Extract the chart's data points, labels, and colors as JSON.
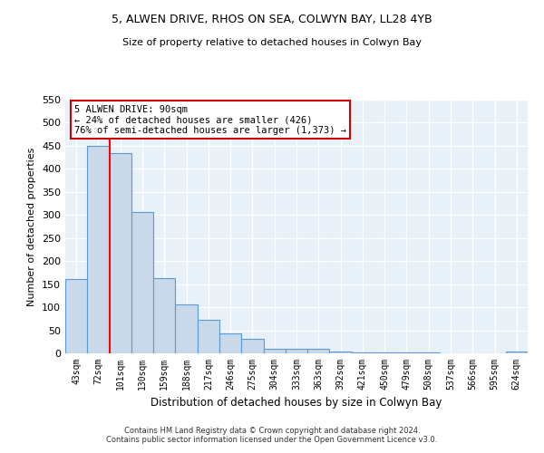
{
  "title1": "5, ALWEN DRIVE, RHOS ON SEA, COLWYN BAY, LL28 4YB",
  "title2": "Size of property relative to detached houses in Colwyn Bay",
  "xlabel": "Distribution of detached houses by size in Colwyn Bay",
  "ylabel": "Number of detached properties",
  "categories": [
    "43sqm",
    "72sqm",
    "101sqm",
    "130sqm",
    "159sqm",
    "188sqm",
    "217sqm",
    "246sqm",
    "275sqm",
    "304sqm",
    "333sqm",
    "363sqm",
    "392sqm",
    "421sqm",
    "450sqm",
    "479sqm",
    "508sqm",
    "537sqm",
    "566sqm",
    "595sqm",
    "624sqm"
  ],
  "values": [
    161,
    449,
    435,
    307,
    164,
    106,
    73,
    44,
    32,
    10,
    9,
    9,
    3,
    2,
    1,
    1,
    1,
    0,
    0,
    0,
    4
  ],
  "bar_color": "#c9d9ea",
  "bar_edge_color": "#5b9bd5",
  "red_line_x": 1.5,
  "annotation_text": "5 ALWEN DRIVE: 90sqm\n← 24% of detached houses are smaller (426)\n76% of semi-detached houses are larger (1,373) →",
  "annotation_box_color": "#ffffff",
  "annotation_box_edge": "#cc0000",
  "footer": "Contains HM Land Registry data © Crown copyright and database right 2024.\nContains public sector information licensed under the Open Government Licence v3.0.",
  "ylim": [
    0,
    550
  ],
  "background_color": "#e8f0f8",
  "grid_color": "#ffffff"
}
